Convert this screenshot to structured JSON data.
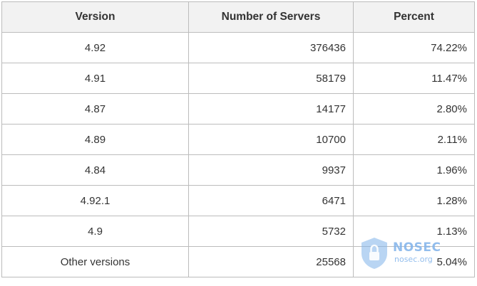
{
  "table": {
    "headers": {
      "version": "Version",
      "servers": "Number of Servers",
      "percent": "Percent"
    },
    "rows": [
      {
        "version": "4.92",
        "servers": "376436",
        "percent": "74.22%"
      },
      {
        "version": "4.91",
        "servers": "58179",
        "percent": "11.47%"
      },
      {
        "version": "4.87",
        "servers": "14177",
        "percent": "2.80%"
      },
      {
        "version": "4.89",
        "servers": "10700",
        "percent": "2.11%"
      },
      {
        "version": "4.84",
        "servers": "9937",
        "percent": "1.96%"
      },
      {
        "version": "4.92.1",
        "servers": "6471",
        "percent": "1.28%"
      },
      {
        "version": "4.9",
        "servers": "5732",
        "percent": "1.13%"
      },
      {
        "version": "Other versions",
        "servers": "25568",
        "percent": "5.04%"
      }
    ]
  },
  "watermark": {
    "brand": "NOSEC",
    "domain": "nosec.org",
    "color": "#7fb2ea",
    "icon": "shield-icon"
  }
}
